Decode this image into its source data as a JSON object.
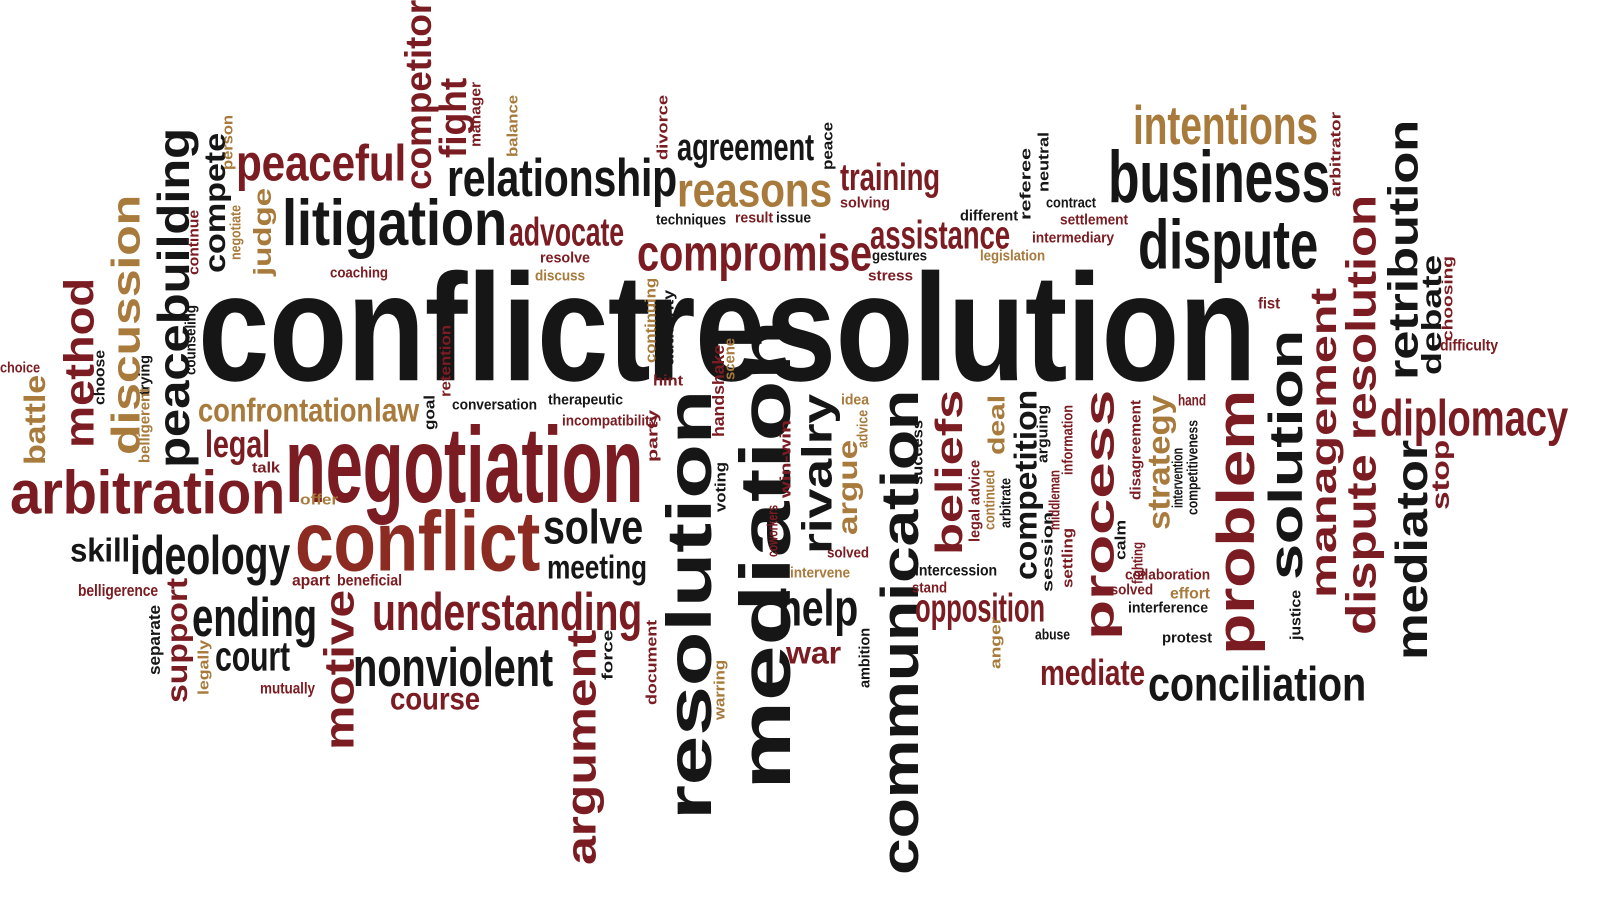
{
  "colors": {
    "black": "#161616",
    "maroon": "#7b1c22",
    "brown": "#8c2b22",
    "gold": "#a87a3c"
  },
  "words": [
    {
      "text": "conflict",
      "color": "black"
    },
    {
      "text": "resolution",
      "color": "black"
    },
    {
      "text": "resolution",
      "color": "black"
    },
    {
      "text": "mediation",
      "color": "black"
    },
    {
      "text": "communication",
      "color": "black"
    },
    {
      "text": "negotiation",
      "color": "maroon"
    },
    {
      "text": "conflict",
      "color": "brown"
    },
    {
      "text": "arbitration",
      "color": "maroon"
    },
    {
      "text": "litigation",
      "color": "black"
    },
    {
      "text": "business",
      "color": "black"
    },
    {
      "text": "dispute",
      "color": "black"
    },
    {
      "text": "intentions",
      "color": "gold"
    },
    {
      "text": "relationship",
      "color": "black"
    },
    {
      "text": "reasons",
      "color": "gold"
    },
    {
      "text": "compromise",
      "color": "maroon"
    },
    {
      "text": "peaceful",
      "color": "maroon"
    },
    {
      "text": "competitor",
      "color": "maroon"
    },
    {
      "text": "fight",
      "color": "maroon"
    },
    {
      "text": "agreement",
      "color": "black"
    },
    {
      "text": "training",
      "color": "maroon"
    },
    {
      "text": "assistance",
      "color": "maroon"
    },
    {
      "text": "advocate",
      "color": "maroon"
    },
    {
      "text": "peacebuilding",
      "color": "black"
    },
    {
      "text": "discussion",
      "color": "gold"
    },
    {
      "text": "method",
      "color": "maroon"
    },
    {
      "text": "battle",
      "color": "gold"
    },
    {
      "text": "compete",
      "color": "black"
    },
    {
      "text": "judge",
      "color": "gold"
    },
    {
      "text": "confrontation",
      "color": "gold"
    },
    {
      "text": "law",
      "color": "gold"
    },
    {
      "text": "legal",
      "color": "maroon"
    },
    {
      "text": "ideology",
      "color": "black"
    },
    {
      "text": "skill",
      "color": "black"
    },
    {
      "text": "ending",
      "color": "black"
    },
    {
      "text": "court",
      "color": "black"
    },
    {
      "text": "motive",
      "color": "maroon"
    },
    {
      "text": "support",
      "color": "maroon"
    },
    {
      "text": "understanding",
      "color": "maroon"
    },
    {
      "text": "nonviolent",
      "color": "black"
    },
    {
      "text": "course",
      "color": "maroon"
    },
    {
      "text": "argument",
      "color": "maroon"
    },
    {
      "text": "solve",
      "color": "black"
    },
    {
      "text": "meeting",
      "color": "black"
    },
    {
      "text": "help",
      "color": "black"
    },
    {
      "text": "war",
      "color": "maroon"
    },
    {
      "text": "rivalry",
      "color": "black"
    },
    {
      "text": "argue",
      "color": "gold"
    },
    {
      "text": "beliefs",
      "color": "maroon"
    },
    {
      "text": "deal",
      "color": "gold"
    },
    {
      "text": "competition",
      "color": "black"
    },
    {
      "text": "opposition",
      "color": "maroon"
    },
    {
      "text": "process",
      "color": "maroon"
    },
    {
      "text": "strategy",
      "color": "gold"
    },
    {
      "text": "problem",
      "color": "maroon"
    },
    {
      "text": "solution",
      "color": "black"
    },
    {
      "text": "management",
      "color": "maroon"
    },
    {
      "text": "dispute resolution",
      "color": "maroon"
    },
    {
      "text": "mediator",
      "color": "black"
    },
    {
      "text": "retribution",
      "color": "black"
    },
    {
      "text": "debate",
      "color": "black"
    },
    {
      "text": "diplomacy",
      "color": "maroon"
    },
    {
      "text": "stop",
      "color": "maroon"
    },
    {
      "text": "conciliation",
      "color": "black"
    },
    {
      "text": "mediate",
      "color": "maroon"
    },
    {
      "text": "choice",
      "color": "maroon"
    },
    {
      "text": "belligerence",
      "color": "maroon"
    },
    {
      "text": "separate",
      "color": "black"
    },
    {
      "text": "legally",
      "color": "gold"
    },
    {
      "text": "mutually",
      "color": "maroon"
    },
    {
      "text": "apart",
      "color": "maroon"
    },
    {
      "text": "beneficial",
      "color": "maroon"
    },
    {
      "text": "offer",
      "color": "gold"
    },
    {
      "text": "talk",
      "color": "maroon"
    },
    {
      "text": "goal",
      "color": "black"
    },
    {
      "text": "conversation",
      "color": "black"
    },
    {
      "text": "therapeutic",
      "color": "black"
    },
    {
      "text": "incompatibility",
      "color": "maroon"
    },
    {
      "text": "party",
      "color": "maroon"
    },
    {
      "text": "voting",
      "color": "black"
    },
    {
      "text": "handshake",
      "color": "maroon"
    },
    {
      "text": "scene",
      "color": "gold"
    },
    {
      "text": "coworkers",
      "color": "maroon"
    },
    {
      "text": "win-win",
      "color": "maroon"
    },
    {
      "text": "idea",
      "color": "gold"
    },
    {
      "text": "advice",
      "color": "gold"
    },
    {
      "text": "solved",
      "color": "maroon"
    },
    {
      "text": "intervene",
      "color": "gold"
    },
    {
      "text": "force",
      "color": "black"
    },
    {
      "text": "document",
      "color": "maroon"
    },
    {
      "text": "warring",
      "color": "gold"
    },
    {
      "text": "ambition",
      "color": "black"
    },
    {
      "text": "success",
      "color": "black"
    },
    {
      "text": "intercession",
      "color": "black"
    },
    {
      "text": "stand",
      "color": "maroon"
    },
    {
      "text": "legal advice",
      "color": "maroon"
    },
    {
      "text": "continued",
      "color": "gold"
    },
    {
      "text": "arbitrate",
      "color": "black"
    },
    {
      "text": "session",
      "color": "black"
    },
    {
      "text": "settling",
      "color": "maroon"
    },
    {
      "text": "arguing",
      "color": "black"
    },
    {
      "text": "middleman",
      "color": "maroon"
    },
    {
      "text": "information",
      "color": "maroon"
    },
    {
      "text": "anger",
      "color": "gold"
    },
    {
      "text": "abuse",
      "color": "black"
    },
    {
      "text": "calm",
      "color": "black"
    },
    {
      "text": "disagreement",
      "color": "maroon"
    },
    {
      "text": "fighting",
      "color": "maroon"
    },
    {
      "text": "collaboration",
      "color": "maroon"
    },
    {
      "text": "resolved",
      "color": "maroon"
    },
    {
      "text": "effort",
      "color": "gold"
    },
    {
      "text": "interference",
      "color": "black"
    },
    {
      "text": "protest",
      "color": "black"
    },
    {
      "text": "intervention",
      "color": "black"
    },
    {
      "text": "competitiveness",
      "color": "black"
    },
    {
      "text": "hand",
      "color": "maroon"
    },
    {
      "text": "justice",
      "color": "black"
    },
    {
      "text": "fist",
      "color": "maroon"
    },
    {
      "text": "difficulty",
      "color": "maroon"
    },
    {
      "text": "choosing",
      "color": "maroon"
    },
    {
      "text": "arbitrator",
      "color": "maroon"
    },
    {
      "text": "different",
      "color": "black"
    },
    {
      "text": "referee",
      "color": "black"
    },
    {
      "text": "neutral",
      "color": "black"
    },
    {
      "text": "contract",
      "color": "black"
    },
    {
      "text": "settlement",
      "color": "maroon"
    },
    {
      "text": "intermediary",
      "color": "maroon"
    },
    {
      "text": "legislation",
      "color": "gold"
    },
    {
      "text": "gestures",
      "color": "black"
    },
    {
      "text": "stress",
      "color": "maroon"
    },
    {
      "text": "solving",
      "color": "maroon"
    },
    {
      "text": "result",
      "color": "maroon"
    },
    {
      "text": "issue",
      "color": "black"
    },
    {
      "text": "techniques",
      "color": "black"
    },
    {
      "text": "peace",
      "color": "black"
    },
    {
      "text": "divorce",
      "color": "maroon"
    },
    {
      "text": "balance",
      "color": "gold"
    },
    {
      "text": "manager",
      "color": "maroon"
    },
    {
      "text": "person",
      "color": "gold"
    },
    {
      "text": "negotiate",
      "color": "gold"
    },
    {
      "text": "continue",
      "color": "maroon"
    },
    {
      "text": "coaching",
      "color": "maroon"
    },
    {
      "text": "resolve",
      "color": "maroon"
    },
    {
      "text": "discuss",
      "color": "gold"
    },
    {
      "text": "counseling",
      "color": "black"
    },
    {
      "text": "choose",
      "color": "black"
    },
    {
      "text": "trying",
      "color": "black"
    },
    {
      "text": "belligerent",
      "color": "gold"
    },
    {
      "text": "retention",
      "color": "maroon"
    },
    {
      "text": "continuing",
      "color": "gold"
    },
    {
      "text": "authority",
      "color": "black"
    },
    {
      "text": "hint",
      "color": "maroon"
    }
  ]
}
